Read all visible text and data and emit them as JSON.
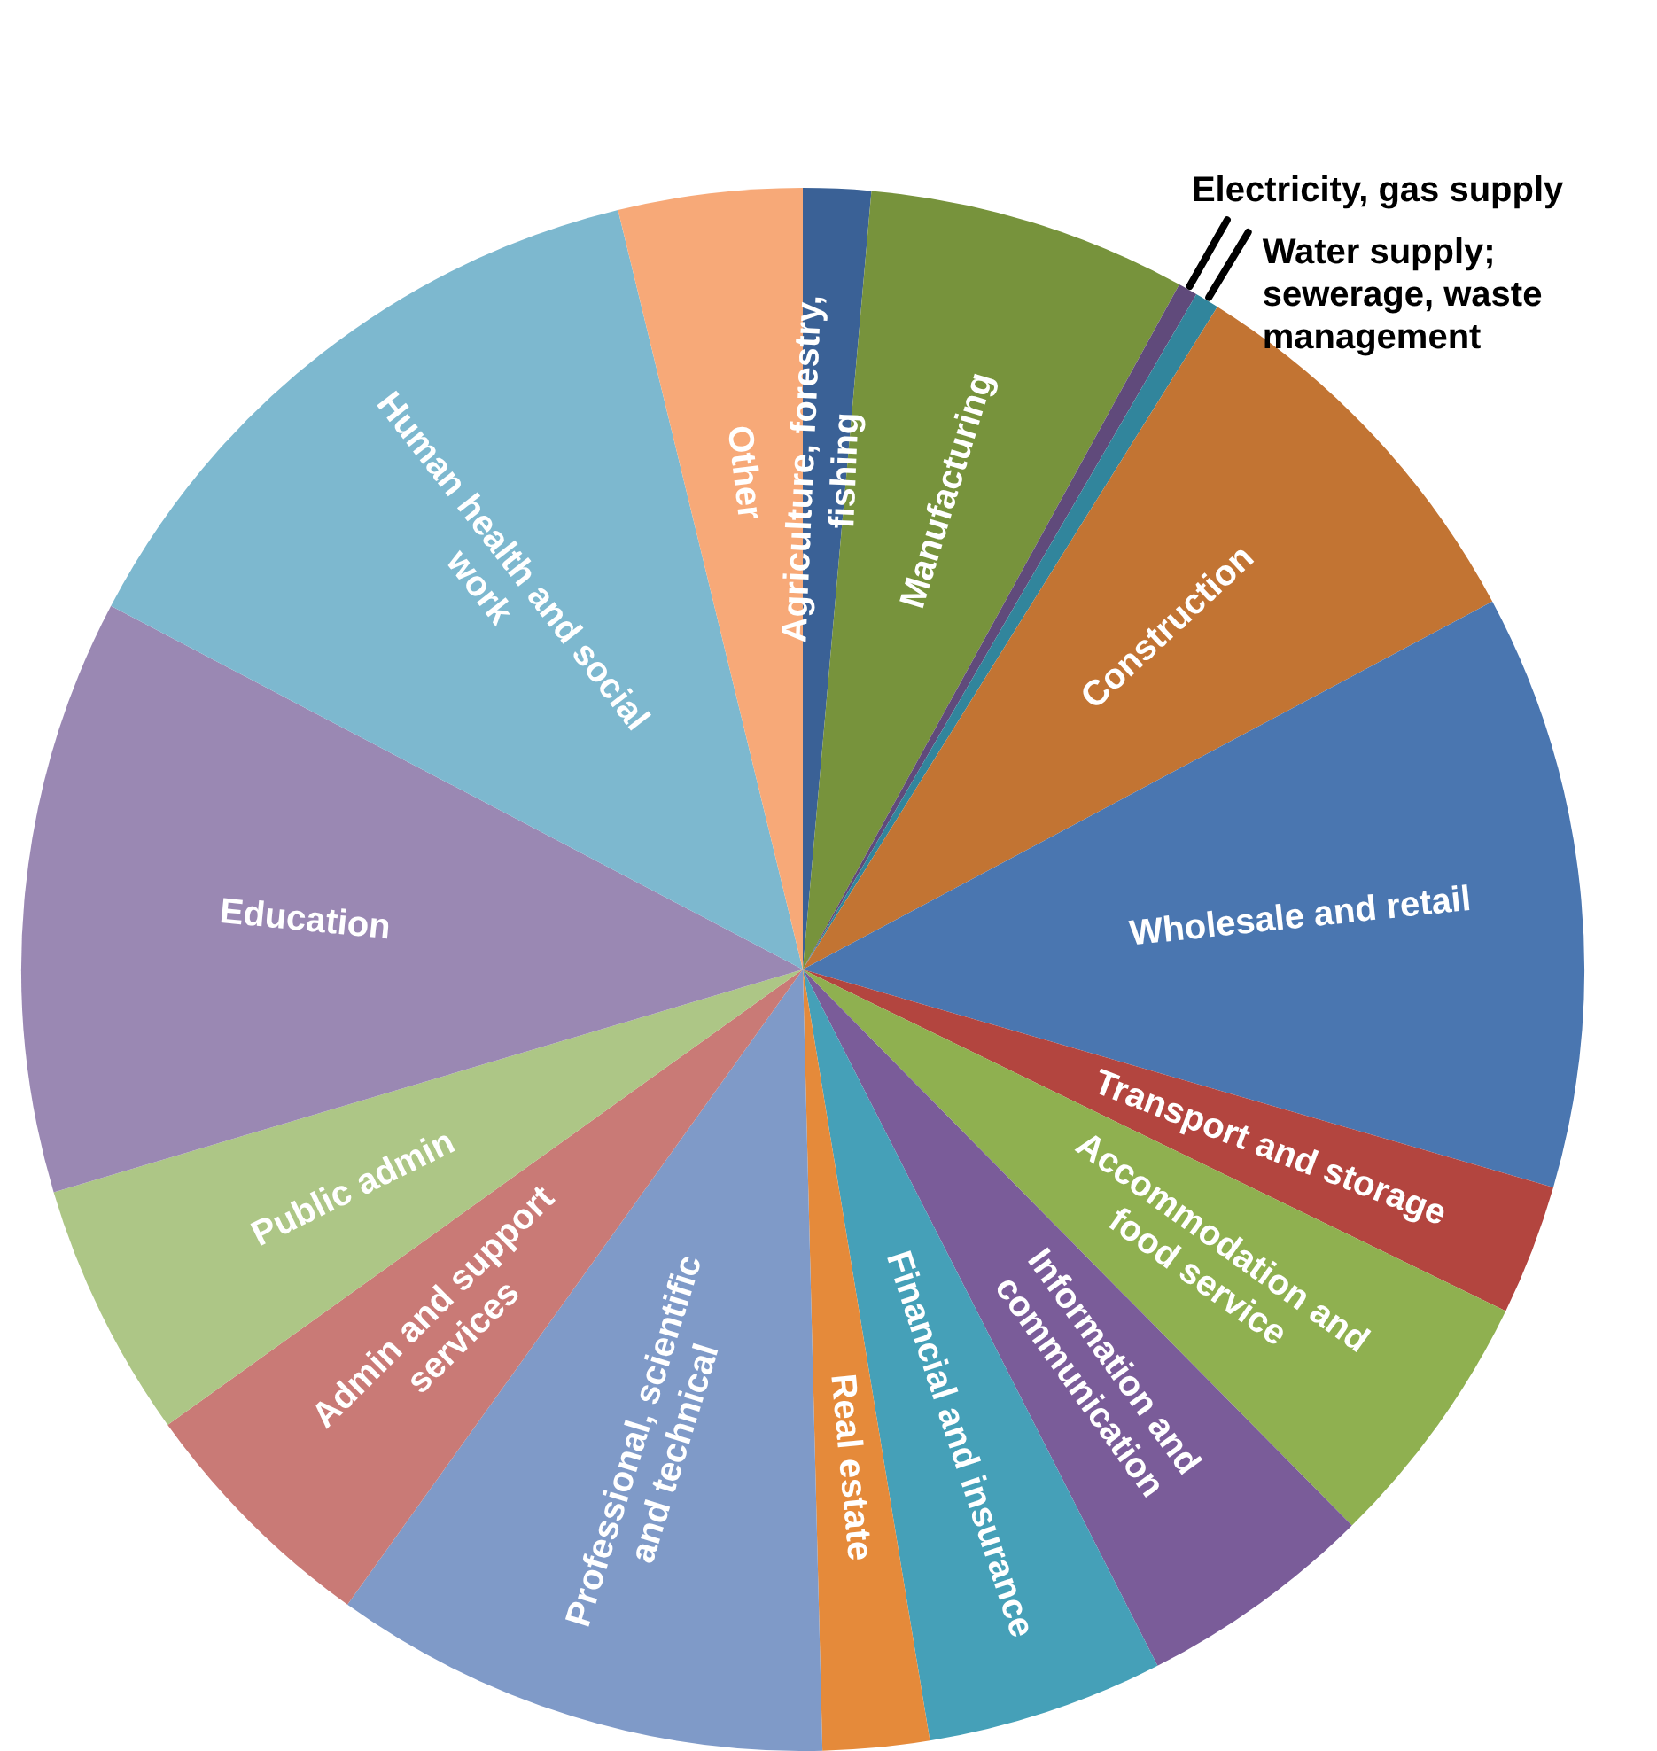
{
  "chart_data": {
    "type": "pie",
    "categories": [
      "Agriculture, forestry, fishing",
      "Manufacturing",
      "Electricity, gas supply",
      "Water supply; sewerage, waste management",
      "Construction",
      "Wholesale and retail",
      "Transport and storage",
      "Accommodation and food service",
      "Information and communication",
      "Financial and insurance",
      "Real estate",
      "Professional, scientific and technical",
      "Admin and support services",
      "Public admin",
      "Education",
      "Human health and social work",
      "Other"
    ],
    "values": [
      1.4,
      6.6,
      0.4,
      0.5,
      8.3,
      12.3,
      2.7,
      5.4,
      4.9,
      4.9,
      2.2,
      10.3,
      5.2,
      5.3,
      12.3,
      13.5,
      3.8
    ],
    "colors": [
      "#3a6196",
      "#77933c",
      "#604a7b",
      "#31859c",
      "#c27433",
      "#4a76b0",
      "#b3453f",
      "#8fb050",
      "#7a5c99",
      "#45a0b8",
      "#e58a3a",
      "#7f9ac8",
      "#c97a76",
      "#adc686",
      "#9a88b3",
      "#7db8cf",
      "#f7a978"
    ],
    "legend": false
  }
}
